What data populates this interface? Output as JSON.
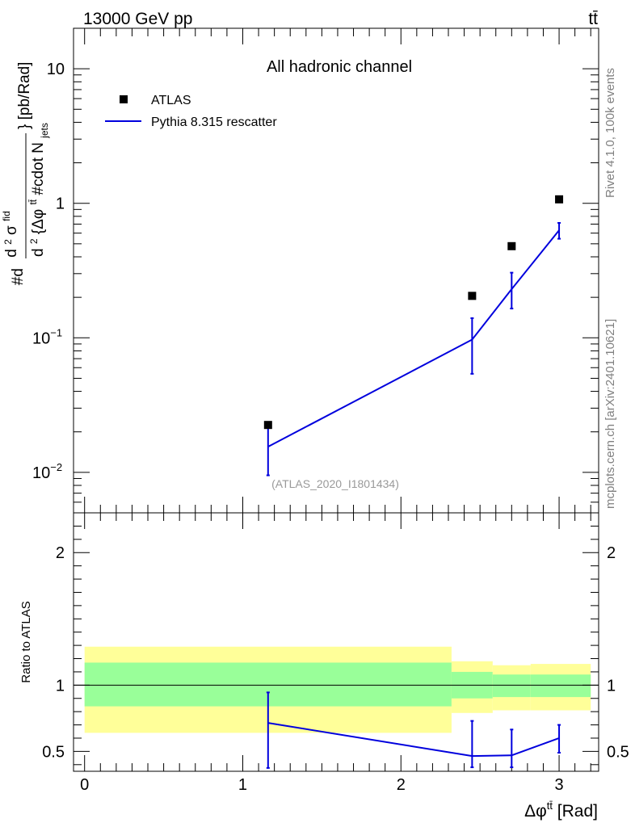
{
  "header": {
    "energy_label": "13000 GeV pp",
    "process_label": "tt̄"
  },
  "side_labels": {
    "rivet": "Rivet 4.1.0,  100k events",
    "source": "mcplots.cern.ch [arXiv:2401.10621]"
  },
  "chart_data": [
    {
      "type": "scatter",
      "panel": "main",
      "title": "All hadronic channel",
      "ylabel": "#d d²σ^{fid} / d² {Δφ^{tt̄} #cdot N_{jets}} [pb/Rad]",
      "ylabel_parts": {
        "numerator_prefix": "#d",
        "numerator_frac": "d",
        "numerator_sup": "2",
        "numerator_sigma": "σ",
        "numerator_sub": "fid",
        "denom_d": "d",
        "denom_sup": "2",
        "denom_body": "{Δφ",
        "denom_sup2": "tt̄",
        "denom_rest": " #cdot N",
        "denom_sub": "jets",
        "close": "} [pb/Rad]"
      },
      "yscale": "log",
      "ylim": [
        0.005,
        20
      ],
      "xlim": [
        -0.07,
        3.25
      ],
      "watermark": "(ATLAS_2020_I1801434)",
      "y_ticks": [
        {
          "value": 10,
          "label": "10",
          "exp": ""
        },
        {
          "value": 1,
          "label": "1",
          "exp": ""
        },
        {
          "value": 0.1,
          "label": "10",
          "exp": "−1"
        },
        {
          "value": 0.01,
          "label": "10",
          "exp": "−2"
        }
      ],
      "legend": {
        "position": "top-left",
        "entries": [
          {
            "label": "ATLAS",
            "marker": "square",
            "color": "#000000"
          },
          {
            "label": "Pythia 8.315 rescatter",
            "marker": "line",
            "color": "#0000dd"
          }
        ]
      },
      "series": [
        {
          "name": "ATLAS",
          "x": [
            1.16,
            2.45,
            2.7,
            3.0
          ],
          "y": [
            0.0225,
            0.205,
            0.48,
            1.07
          ]
        },
        {
          "name": "Pythia 8.315 rescatter",
          "x": [
            1.16,
            2.45,
            2.7,
            3.0
          ],
          "y": [
            0.0155,
            0.097,
            0.23,
            0.63
          ],
          "y_err_low": [
            0.0095,
            0.054,
            0.165,
            0.545
          ],
          "y_err_high": [
            0.0215,
            0.14,
            0.305,
            0.715
          ]
        }
      ]
    },
    {
      "type": "line",
      "panel": "ratio",
      "ylabel": "Ratio to ATLAS",
      "xlabel": "Δφ^{tt̄} [Rad]",
      "xlabel_parts": {
        "main": "Δφ",
        "sup": "tt̄",
        "unit": " [Rad]"
      },
      "ylim": [
        0.35,
        2.3
      ],
      "xlim": [
        -0.07,
        3.25
      ],
      "x_ticks": [
        "0",
        "1",
        "2",
        "3"
      ],
      "x_tick_values": [
        0,
        1,
        2,
        3
      ],
      "y_ticks": [
        "0.5",
        "1",
        "2"
      ],
      "y_tick_values": [
        0.5,
        1,
        2
      ],
      "reference_line": 1,
      "bands": {
        "bins": [
          [
            0,
            2.32
          ],
          [
            2.32,
            2.58
          ],
          [
            2.58,
            2.82
          ],
          [
            2.82,
            3.2
          ]
        ],
        "outer_low": [
          0.64,
          0.79,
          0.81,
          0.81
        ],
        "outer_high": [
          1.29,
          1.18,
          1.15,
          1.16
        ],
        "inner_low": [
          0.84,
          0.9,
          0.91,
          0.91
        ],
        "inner_high": [
          1.17,
          1.1,
          1.08,
          1.08
        ],
        "outer_color": "#ffff99",
        "inner_color": "#99ff99"
      },
      "series": [
        {
          "name": "Pythia 8.315 rescatter",
          "x": [
            1.16,
            2.45,
            2.7,
            3.0
          ],
          "y": [
            0.715,
            0.465,
            0.47,
            0.6
          ],
          "y_err_low": [
            0.375,
            0.38,
            0.38,
            0.49
          ],
          "y_err_high": [
            0.945,
            0.73,
            0.665,
            0.7
          ],
          "color": "#0000dd"
        }
      ]
    }
  ]
}
